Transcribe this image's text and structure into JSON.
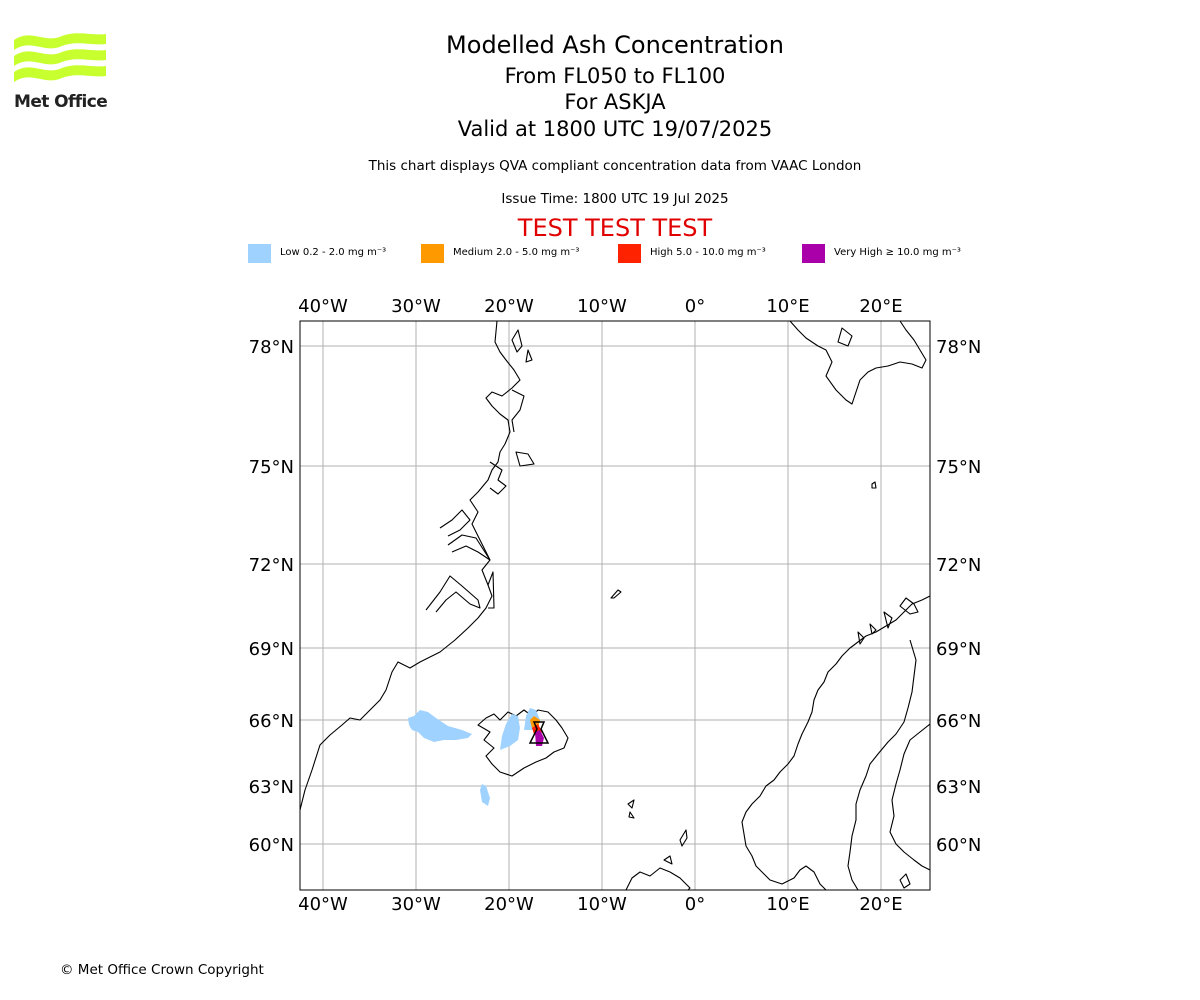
{
  "branding": {
    "logo_text": "Met Office",
    "logo_color": "#c8ff2e"
  },
  "header": {
    "title": "Modelled Ash Concentration",
    "level_range": "From FL050 to FL100",
    "volcano": "For ASKJA",
    "valid_time": "Valid at 1800 UTC 19/07/2025",
    "description": "This chart displays QVA compliant concentration data from VAAC London",
    "issue_time": "Issue Time: 1800 UTC 19 Jul 2025",
    "test_banner": "TEST TEST TEST"
  },
  "legend": [
    {
      "label": "Low 0.2 - 2.0 mg m⁻³",
      "color": "#a0d2ff"
    },
    {
      "label": "Medium 2.0 - 5.0 mg m⁻³",
      "color": "#ff9900"
    },
    {
      "label": "High 5.0 - 10.0 mg m⁻³",
      "color": "#ff2200"
    },
    {
      "label": "Very High ≥ 10.0 mg m⁻³",
      "color": "#aa00aa"
    }
  ],
  "map": {
    "lon_ticks": [
      "40°W",
      "30°W",
      "20°W",
      "10°W",
      "0°",
      "10°E",
      "20°E"
    ],
    "lat_ticks": [
      "78°N",
      "75°N",
      "72°N",
      "69°N",
      "66°N",
      "63°N",
      "60°N"
    ],
    "source_marker": "ASKJA",
    "grid_color": "#b0b0b0",
    "coast_color": "#000000"
  },
  "footer": {
    "copyright": "© Met Office Crown Copyright"
  }
}
